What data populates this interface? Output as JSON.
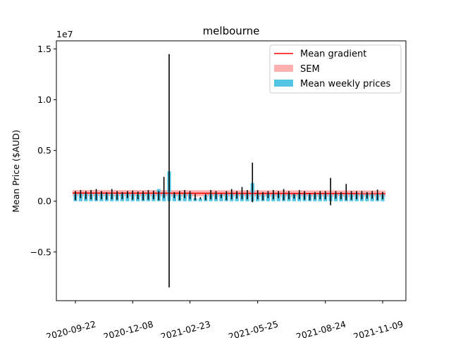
{
  "chart_data": {
    "type": "bar",
    "title": "melbourne",
    "xlabel": "",
    "ylabel": "Mean Price ($AUD)",
    "y_scale_label": "1e7",
    "ylim": [
      -9800000,
      15800000
    ],
    "y_ticks": [
      -5000000,
      0,
      5000000,
      10000000,
      15000000
    ],
    "y_tick_labels": [
      "−0.5",
      "0.0",
      "0.5",
      "1.0",
      "1.5"
    ],
    "x_ticks": [
      "2020-09-22",
      "2020-12-08",
      "2021-02-23",
      "2021-05-25",
      "2021-08-24",
      "2021-11-09"
    ],
    "grid": false,
    "legend": {
      "placement": "top-right",
      "entries": [
        {
          "label": "Mean gradient",
          "kind": "line",
          "color": "#ff0000"
        },
        {
          "label": "SEM",
          "kind": "patch",
          "color": "#ffb0b0"
        },
        {
          "label": "Mean weekly prices",
          "kind": "patch",
          "color": "#52c5e3"
        }
      ]
    },
    "colors": {
      "bar": "#52c5e3",
      "errorbar": "#000000",
      "mean_line": "#ff0000",
      "sem_band": "#ffb0b0"
    },
    "mean_gradient": {
      "start": 800000,
      "end": 750000
    },
    "sem_band": {
      "half_width": 300000
    },
    "series": [
      {
        "name": "Mean weekly prices",
        "x": [
          "2020-09-22",
          "2020-09-29",
          "2020-10-06",
          "2020-10-13",
          "2020-10-20",
          "2020-10-27",
          "2020-11-03",
          "2020-11-10",
          "2020-11-17",
          "2020-11-24",
          "2020-12-01",
          "2020-12-08",
          "2020-12-15",
          "2020-12-22",
          "2020-12-29",
          "2021-01-05",
          "2021-01-12",
          "2021-01-19",
          "2021-01-26",
          "2021-02-02",
          "2021-02-09",
          "2021-02-16",
          "2021-02-23",
          "2021-03-02",
          "2021-03-09",
          "2021-03-16",
          "2021-03-23",
          "2021-03-30",
          "2021-04-06",
          "2021-04-13",
          "2021-04-20",
          "2021-04-27",
          "2021-05-04",
          "2021-05-11",
          "2021-05-18",
          "2021-05-25",
          "2021-06-01",
          "2021-06-08",
          "2021-06-15",
          "2021-06-22",
          "2021-06-29",
          "2021-07-06",
          "2021-07-13",
          "2021-07-20",
          "2021-07-27",
          "2021-08-03",
          "2021-08-10",
          "2021-08-17",
          "2021-08-24",
          "2021-08-31",
          "2021-09-07",
          "2021-09-14",
          "2021-09-21",
          "2021-09-28",
          "2021-10-05",
          "2021-10-12",
          "2021-10-19",
          "2021-10-26",
          "2021-11-02",
          "2021-11-09"
        ],
        "values": [
          700000,
          750000,
          800000,
          720000,
          780000,
          850000,
          760000,
          730000,
          700000,
          790000,
          770000,
          720000,
          680000,
          760000,
          750000,
          700000,
          1200000,
          900000,
          2950000,
          700000,
          650000,
          750000,
          800000,
          300000,
          250000,
          600000,
          720000,
          800000,
          690000,
          750000,
          780000,
          700000,
          820000,
          750000,
          1800000,
          700000,
          650000,
          720000,
          800000,
          750000,
          680000,
          700000,
          760000,
          730000,
          700000,
          650000,
          700000,
          720000,
          700000,
          680000,
          750000,
          800000,
          650000,
          700000,
          720000,
          680000,
          750000,
          720000,
          690000,
          700000
        ],
        "err_low": [
          100000,
          300000,
          200000,
          200000,
          100000,
          200000,
          150000,
          200000,
          150000,
          200000,
          300000,
          150000,
          200000,
          100000,
          150000,
          200000,
          100000,
          300000,
          -8500000,
          300000,
          100000,
          300000,
          200000,
          100000,
          200000,
          100000,
          200000,
          200000,
          300000,
          100000,
          200000,
          250000,
          200000,
          200000,
          -100000,
          200000,
          100000,
          300000,
          200000,
          300000,
          100000,
          200000,
          250000,
          200000,
          150000,
          100000,
          200000,
          200000,
          200000,
          -400000,
          250000,
          200000,
          100000,
          150000,
          200000,
          200000,
          250000,
          250000,
          100000,
          200000
        ],
        "err_high": [
          1000000,
          1100000,
          1000000,
          1100000,
          1200000,
          1000000,
          900000,
          1200000,
          1000000,
          900000,
          1000000,
          1050000,
          950000,
          1000000,
          1100000,
          1050000,
          1000000,
          2400000,
          14500000,
          900000,
          1000000,
          1100000,
          1000000,
          700000,
          400000,
          700000,
          1100000,
          1000000,
          700000,
          1000000,
          1200000,
          1000000,
          1400000,
          1100000,
          3800000,
          1100000,
          900000,
          1000000,
          1100000,
          1000000,
          1200000,
          1000000,
          700000,
          1100000,
          1000000,
          800000,
          900000,
          1000000,
          1000000,
          2300000,
          1000000,
          900000,
          1700000,
          1000000,
          1000000,
          1000000,
          900000,
          1000000,
          1150000,
          900000
        ]
      }
    ]
  }
}
